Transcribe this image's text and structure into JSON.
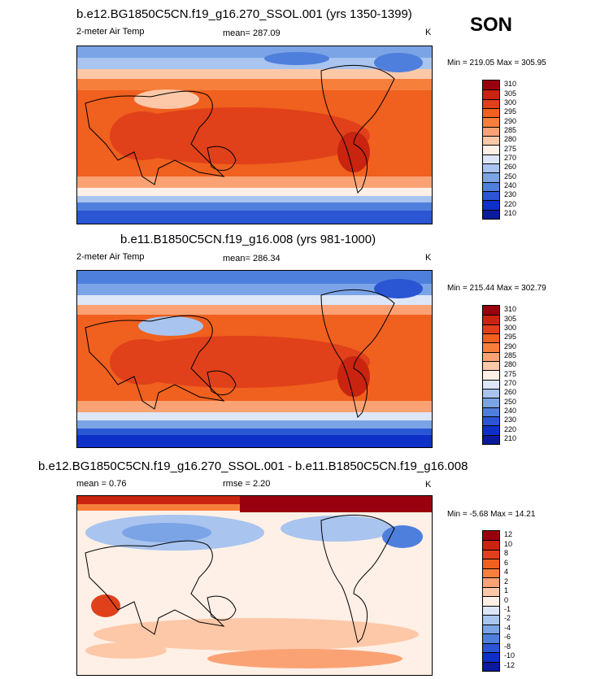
{
  "season": "SON",
  "panels": [
    {
      "title": "b.e12.BG1850C5CN.f19_g16.270_SSOL.001 (yrs 1350-1399)",
      "left_label": "2-meter Air Temp",
      "stat_label": "mean= 287.09",
      "units": "K",
      "minmax": "Min = 219.05 Max = 305.95",
      "colorbar": [
        "310",
        "305",
        "300",
        "295",
        "290",
        "285",
        "280",
        "275",
        "270",
        "260",
        "250",
        "240",
        "230",
        "220",
        "210"
      ]
    },
    {
      "title": "b.e11.B1850C5CN.f19_g16.008 (yrs 981-1000)",
      "left_label": "2-meter Air Temp",
      "stat_label": "mean= 286.34",
      "units": "K",
      "minmax": "Min = 215.44 Max = 302.79",
      "colorbar": [
        "310",
        "305",
        "300",
        "295",
        "290",
        "285",
        "280",
        "275",
        "270",
        "260",
        "250",
        "240",
        "230",
        "220",
        "210"
      ]
    },
    {
      "title": "b.e12.BG1850C5CN.f19_g16.270_SSOL.001 - b.e11.B1850C5CN.f19_g16.008",
      "left_label": "mean =   0.76",
      "stat_label": "rmse =   2.20",
      "units": "K",
      "minmax": "Min =  -5.68 Max =  14.21",
      "colorbar": [
        "12",
        "10",
        "8",
        "6",
        "4",
        "2",
        "1",
        "0",
        "-1",
        "-2",
        "-4",
        "-6",
        "-8",
        "-10",
        "-12"
      ]
    }
  ],
  "colors": {
    "abs_scale": [
      "#99000d",
      "#c8240f",
      "#e0401a",
      "#f0601e",
      "#f77f3c",
      "#fba275",
      "#fdc8a8",
      "#fef0e6",
      "#dde6f7",
      "#a8c4ef",
      "#7ba4e6",
      "#4f7fdc",
      "#2a55d3",
      "#0d30c6",
      "#0a1a9a"
    ],
    "diff_scale": [
      "#99000d",
      "#c8240f",
      "#e0401a",
      "#f0601e",
      "#f77f3c",
      "#fba275",
      "#fdc8a8",
      "#fef0e6",
      "#dde6f7",
      "#a8c4ef",
      "#7ba4e6",
      "#4f7fdc",
      "#2a55d3",
      "#0d30c6",
      "#0a1a9a"
    ]
  }
}
